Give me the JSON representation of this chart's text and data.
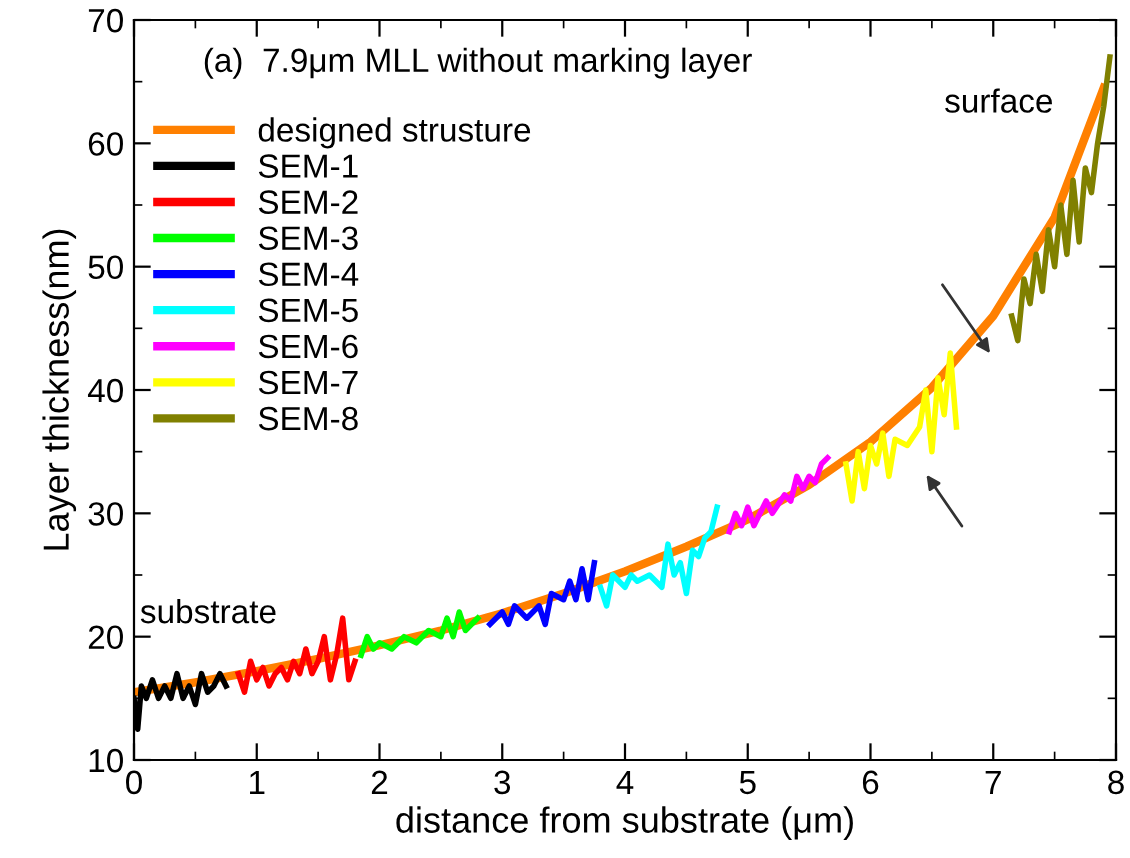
{
  "chart_data": {
    "type": "line",
    "title": "(a)  7.9μm MLL without marking layer",
    "xlabel": "distance from substrate (μm)",
    "ylabel": "Layer thickness(nm)",
    "xlim": [
      0,
      8
    ],
    "ylim": [
      10,
      70
    ],
    "xticks": [
      0,
      1,
      2,
      3,
      4,
      5,
      6,
      7,
      8
    ],
    "yticks": [
      10,
      20,
      30,
      40,
      50,
      60,
      70
    ],
    "grid": false,
    "legend": "top left",
    "marker": "none",
    "line_style": "solid",
    "annotations": [
      "substrate",
      "surface"
    ],
    "series": [
      {
        "name": "designed strusture",
        "color": "#ff8000",
        "x": [
          0,
          0.5,
          1,
          1.5,
          2,
          2.5,
          3,
          3.5,
          4,
          4.5,
          5,
          5.5,
          6,
          6.5,
          7,
          7.5,
          7.9
        ],
        "values": [
          15.5,
          16.3,
          17.2,
          18.2,
          19.3,
          20.5,
          21.9,
          23.5,
          25.3,
          27.3,
          29.5,
          32.3,
          35.8,
          40.2,
          46,
          54,
          64.5
        ]
      },
      {
        "name": "SEM-1",
        "color": "#000000",
        "x": [
          0,
          0.03,
          0.06,
          0.1,
          0.15,
          0.2,
          0.25,
          0.3,
          0.35,
          0.4,
          0.45,
          0.5,
          0.55,
          0.6,
          0.65,
          0.7,
          0.75
        ],
        "values": [
          15,
          12.5,
          16,
          15,
          16.5,
          15,
          16,
          15,
          17,
          15,
          16,
          14.5,
          17,
          15.5,
          16,
          17,
          16
        ]
      },
      {
        "name": "SEM-2",
        "color": "#ff0000",
        "x": [
          0.85,
          0.9,
          0.95,
          1.0,
          1.05,
          1.1,
          1.15,
          1.2,
          1.25,
          1.3,
          1.35,
          1.4,
          1.45,
          1.5,
          1.55,
          1.6,
          1.65,
          1.7,
          1.75,
          1.8
        ],
        "values": [
          17,
          15.5,
          18,
          16.5,
          17.5,
          16,
          17,
          17.5,
          16.5,
          18,
          17,
          19,
          17,
          18,
          20,
          16.5,
          18.5,
          21.5,
          16.5,
          18
        ]
      },
      {
        "name": "SEM-3",
        "color": "#00ff00",
        "x": [
          1.85,
          1.9,
          1.95,
          2.0,
          2.1,
          2.2,
          2.3,
          2.4,
          2.5,
          2.55,
          2.6,
          2.65,
          2.7,
          2.75,
          2.8
        ],
        "values": [
          18.5,
          20,
          19,
          19.5,
          19,
          20,
          19.5,
          20.5,
          20,
          21.5,
          20,
          22,
          20.5,
          21,
          21.5
        ]
      },
      {
        "name": "SEM-4",
        "color": "#0000ff",
        "x": [
          2.9,
          3.0,
          3.05,
          3.1,
          3.2,
          3.3,
          3.35,
          3.4,
          3.5,
          3.55,
          3.6,
          3.65,
          3.7,
          3.75
        ],
        "values": [
          21,
          22,
          21,
          22.5,
          21.5,
          22.5,
          21,
          23.5,
          23,
          24.5,
          23,
          25.5,
          23,
          26
        ]
      },
      {
        "name": "SEM-5",
        "color": "#00ffff",
        "x": [
          3.8,
          3.85,
          3.9,
          4.0,
          4.05,
          4.1,
          4.2,
          4.3,
          4.35,
          4.4,
          4.45,
          4.5,
          4.55,
          4.6,
          4.65,
          4.7,
          4.75
        ],
        "values": [
          24,
          22.5,
          25,
          24,
          25,
          24.5,
          25,
          24,
          27.5,
          25,
          26,
          23.5,
          27,
          26.5,
          28,
          28.5,
          30.5
        ]
      },
      {
        "name": "SEM-6",
        "color": "#ff00ff",
        "x": [
          4.85,
          4.9,
          4.95,
          5.0,
          5.05,
          5.1,
          5.15,
          5.2,
          5.3,
          5.35,
          5.4,
          5.45,
          5.5,
          5.55,
          5.6,
          5.65
        ],
        "values": [
          28.5,
          30,
          29,
          30.5,
          29,
          30,
          31,
          30,
          31.5,
          31,
          33,
          32,
          33,
          32.5,
          34,
          34.5
        ]
      },
      {
        "name": "SEM-7",
        "color": "#ffff00",
        "x": [
          5.8,
          5.85,
          5.9,
          5.95,
          6.0,
          6.05,
          6.1,
          6.15,
          6.2,
          6.3,
          6.4,
          6.45,
          6.5,
          6.55,
          6.6,
          6.65,
          6.7
        ],
        "values": [
          34,
          31,
          35,
          32,
          35.5,
          34,
          36.5,
          33,
          36,
          35.5,
          37,
          40,
          35,
          41,
          38,
          43,
          37
        ]
      },
      {
        "name": "SEM-8",
        "color": "#808000",
        "x": [
          7.15,
          7.2,
          7.25,
          7.3,
          7.35,
          7.4,
          7.45,
          7.5,
          7.55,
          7.6,
          7.65,
          7.7,
          7.75,
          7.8,
          7.85,
          7.9,
          7.95
        ],
        "values": [
          46,
          44,
          49,
          47,
          51,
          48,
          53,
          50,
          55,
          51,
          57,
          52,
          58,
          56,
          60,
          63,
          67
        ]
      }
    ]
  }
}
